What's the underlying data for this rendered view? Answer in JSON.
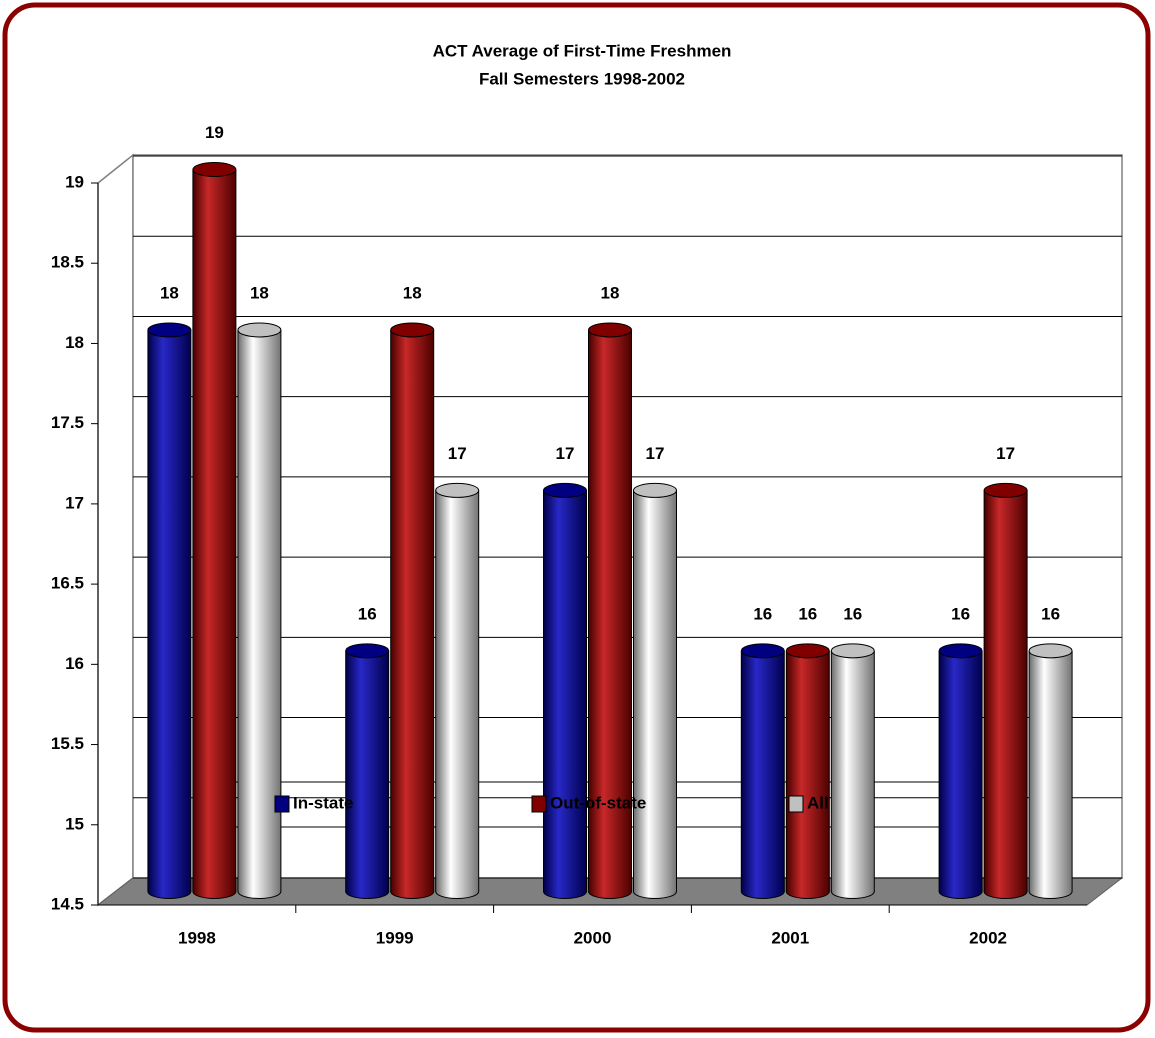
{
  "chart_data": {
    "type": "bar",
    "title": "ACT Average of First-Time Freshmen",
    "subtitle": "Fall Semesters 1998-2002",
    "categories": [
      "1998",
      "1999",
      "2000",
      "2001",
      "2002"
    ],
    "series": [
      {
        "name": "In-state",
        "color": "#000080",
        "values": [
          18,
          16,
          17,
          16,
          16
        ]
      },
      {
        "name": "Out-of-state",
        "color": "#800000",
        "values": [
          19,
          18,
          18,
          16,
          17
        ]
      },
      {
        "name": "All",
        "color": "#c0c0c0",
        "values": [
          18,
          17,
          17,
          16,
          16
        ]
      }
    ],
    "ylim": [
      14.5,
      19
    ],
    "yticks": [
      14.5,
      15,
      15.5,
      16,
      16.5,
      17,
      17.5,
      18,
      18.5,
      19
    ],
    "grid": true,
    "legend": "bottom"
  }
}
